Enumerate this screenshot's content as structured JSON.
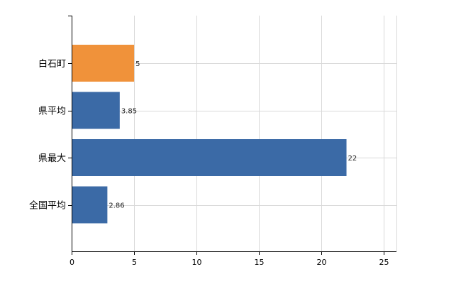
{
  "chart_data": {
    "type": "bar",
    "orientation": "horizontal",
    "categories": [
      "白石町",
      "県平均",
      "県最大",
      "全国平均"
    ],
    "values": [
      5,
      3.85,
      22,
      2.86
    ],
    "data_labels": [
      "5",
      "3.85",
      "22",
      "2.86"
    ],
    "bar_colors": [
      "#f0923a",
      "#3b6aa6",
      "#3b6aa6",
      "#3b6aa6"
    ],
    "xlim": [
      0,
      26
    ],
    "xticks": [
      0,
      5,
      10,
      15,
      20,
      25
    ],
    "grid": true,
    "legend": "none"
  }
}
